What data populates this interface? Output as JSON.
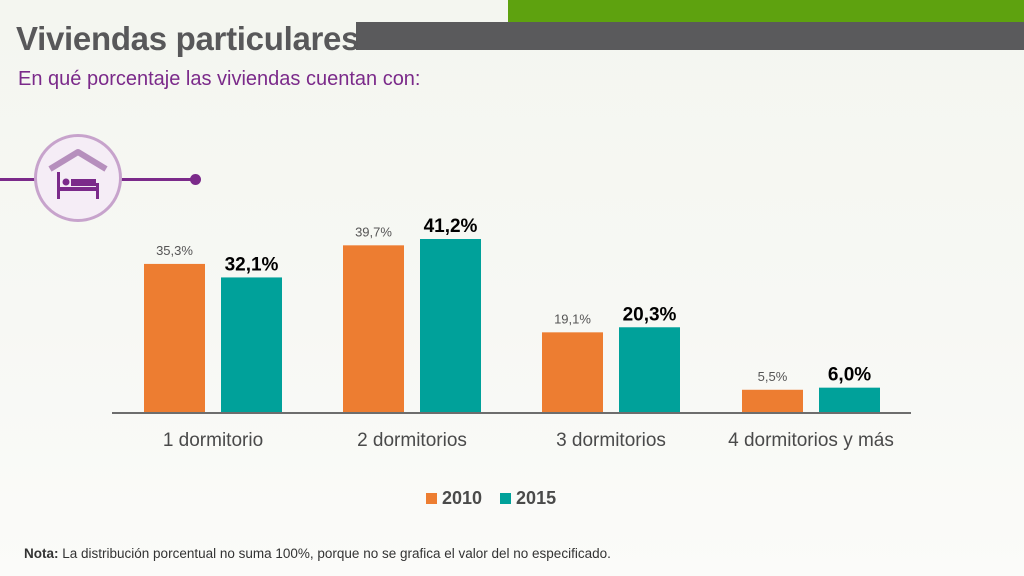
{
  "header": {
    "title": "Viviendas particulares",
    "subtitle": "En qué porcentaje las viviendas cuentan con:"
  },
  "icon": {
    "name": "bed-house-icon"
  },
  "colors": {
    "series_2010": "#ed7d31",
    "series_2015": "#00a19a",
    "accent": "#7b2a8a",
    "brand_green": "#5ea20f"
  },
  "chart_data": {
    "type": "bar",
    "categories": [
      "1 dormitorio",
      "2 dormitorios",
      "3 dormitorios",
      "4 dormitorios y más"
    ],
    "series": [
      {
        "name": "2010",
        "values": [
          35.3,
          39.7,
          19.1,
          5.5
        ],
        "labels": [
          "35,3%",
          "39,7%",
          "19,1%",
          "5,5%"
        ],
        "color": "#ed7d31"
      },
      {
        "name": "2015",
        "values": [
          32.1,
          41.2,
          20.3,
          6.0
        ],
        "labels": [
          "32,1%",
          "41,2%",
          "20,3%",
          "6,0%"
        ],
        "color": "#00a19a"
      }
    ],
    "ylim": [
      0,
      45
    ],
    "grid": false,
    "legend": "bottom"
  },
  "legend": {
    "items": [
      "2010",
      "2015"
    ]
  },
  "note": {
    "label": "Nota:",
    "text": " La distribución porcentual no suma 100%, porque no se grafica el valor del no especificado."
  }
}
